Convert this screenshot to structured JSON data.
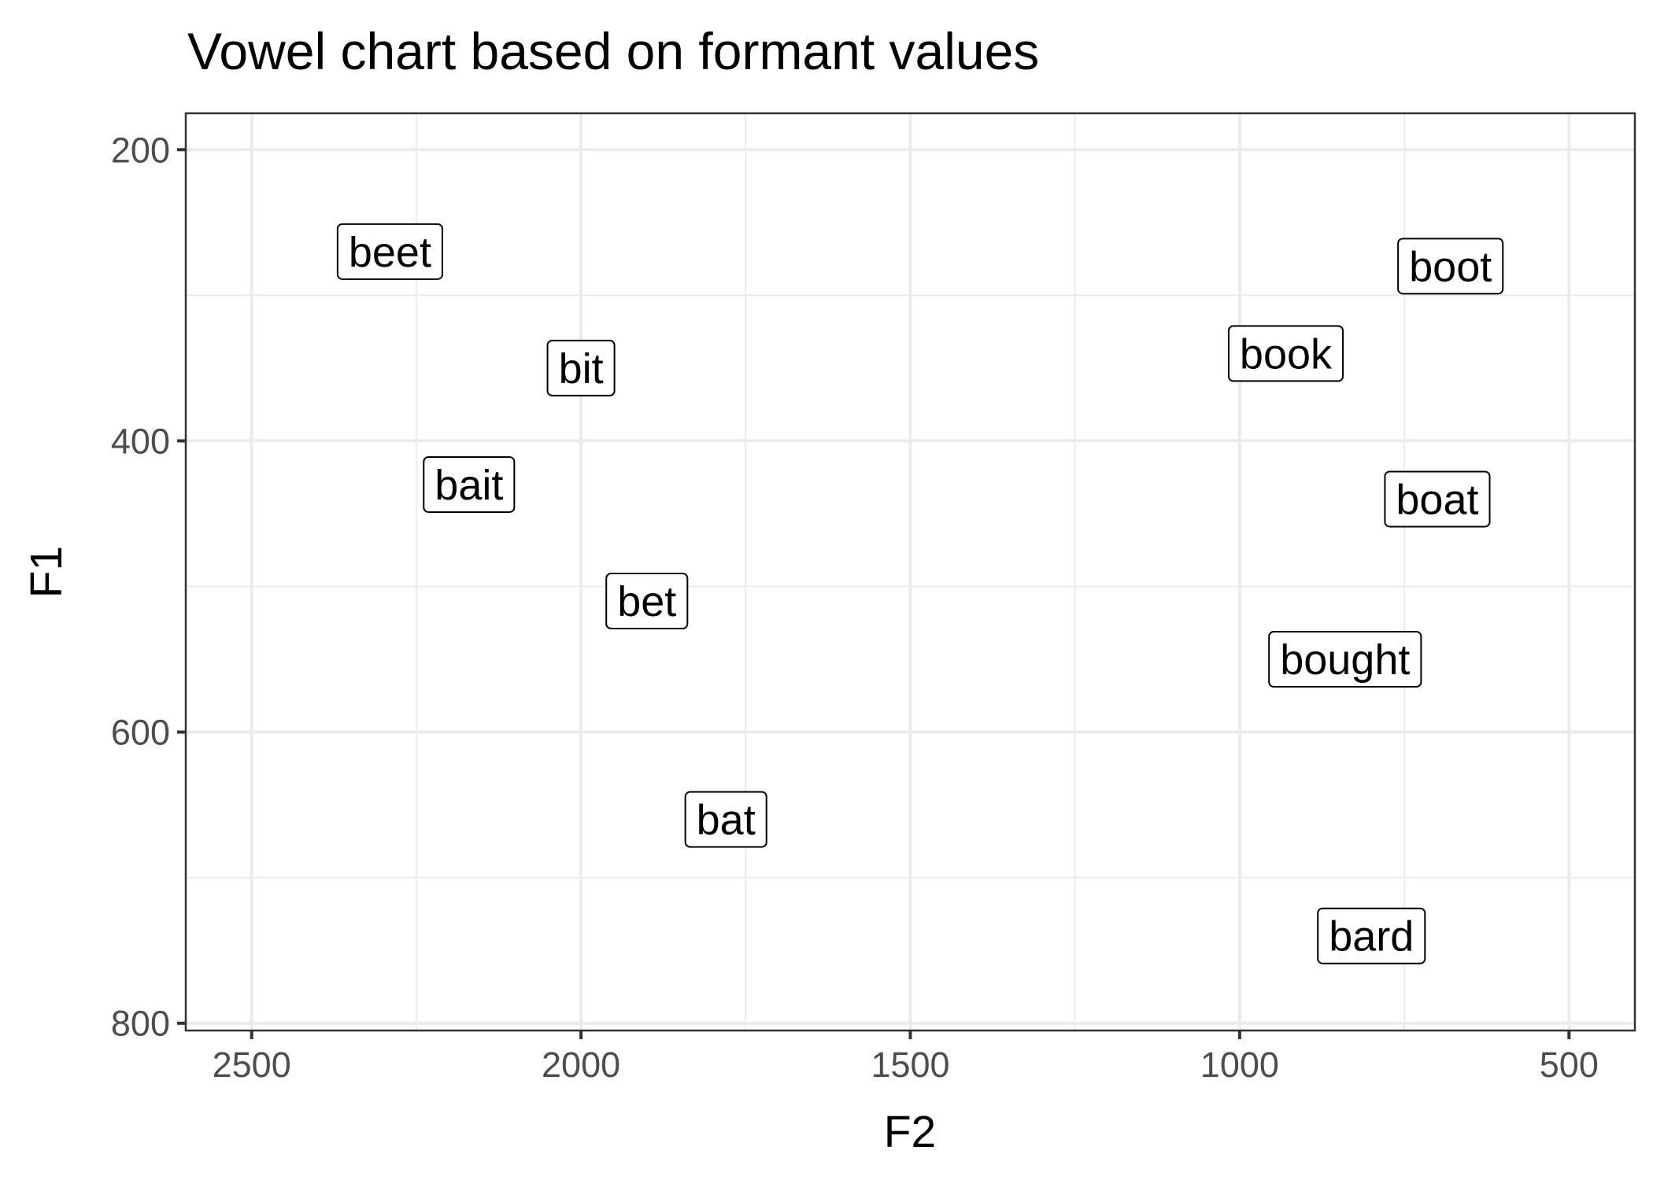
{
  "chart_data": {
    "type": "scatter",
    "title": "Vowel chart based on formant values",
    "xlabel": "F2",
    "ylabel": "F1",
    "x_reversed": true,
    "y_reversed": true,
    "xlim": [
      2600,
      400
    ],
    "ylim": [
      175,
      805
    ],
    "x_ticks": [
      2500,
      2000,
      1500,
      1000,
      500
    ],
    "y_ticks": [
      200,
      400,
      600,
      800
    ],
    "grid": true,
    "points": [
      {
        "label": "beet",
        "F2": 2290,
        "F1": 270
      },
      {
        "label": "bit",
        "F2": 2000,
        "F1": 350
      },
      {
        "label": "bait",
        "F2": 2170,
        "F1": 430
      },
      {
        "label": "bet",
        "F2": 1900,
        "F1": 510
      },
      {
        "label": "bat",
        "F2": 1780,
        "F1": 660
      },
      {
        "label": "boot",
        "F2": 680,
        "F1": 280
      },
      {
        "label": "book",
        "F2": 930,
        "F1": 340
      },
      {
        "label": "boat",
        "F2": 700,
        "F1": 440
      },
      {
        "label": "bought",
        "F2": 840,
        "F1": 550
      },
      {
        "label": "bard",
        "F2": 800,
        "F1": 740
      }
    ]
  }
}
